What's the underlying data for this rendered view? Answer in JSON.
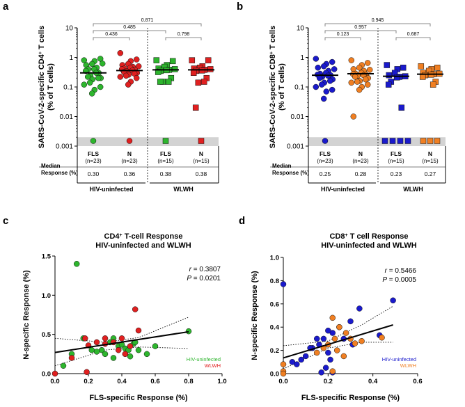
{
  "figure": {
    "panel_labels": [
      "a",
      "b",
      "c",
      "d"
    ]
  },
  "chart_data": [
    {
      "panel": "a",
      "type": "scatter",
      "title": "",
      "ylabel": "SARS-CoV-2-specific CD4+ T cells (% of T cells)",
      "ylabel_lines": [
        "SARS-CoV-2-specific CD4",
        "+",
        " T cells",
        "(% of T cells)"
      ],
      "yscale": "log",
      "ylim": [
        0.001,
        10
      ],
      "yticks": [
        0.001,
        0.01,
        0.1,
        1,
        10
      ],
      "ytick_labels": [
        "0.001",
        "0.01",
        "0.1",
        "1",
        "10"
      ],
      "floor_value": 0.0015,
      "row_labels": {
        "median": "Median",
        "response": "Response  (%)"
      },
      "groups": [
        {
          "name": "HIV-uninfected",
          "columns": [
            0,
            1
          ]
        },
        {
          "name": "WLWH",
          "columns": [
            2,
            3
          ]
        }
      ],
      "columns": [
        {
          "label": "FLS",
          "n": "(n=23)",
          "median": "0.30",
          "median_value": 0.3,
          "marker": "circle",
          "color": "#2db52d",
          "values": [
            0.8,
            0.9,
            0.75,
            0.6,
            0.55,
            0.62,
            0.45,
            0.4,
            0.4,
            0.35,
            0.3,
            0.3,
            0.25,
            0.22,
            0.2,
            0.2,
            0.18,
            0.14,
            0.12,
            0.1,
            0.08,
            0.06,
            0.0015
          ]
        },
        {
          "label": "N",
          "n": "(n=23)",
          "median": "0.36",
          "median_value": 0.36,
          "marker": "circle",
          "color": "#e02020",
          "values": [
            1.4,
            0.85,
            0.75,
            0.6,
            0.55,
            0.5,
            0.48,
            0.45,
            0.42,
            0.4,
            0.38,
            0.36,
            0.34,
            0.32,
            0.3,
            0.28,
            0.26,
            0.24,
            0.22,
            0.2,
            0.15,
            0.12,
            0.0015
          ]
        },
        {
          "label": "FLS",
          "n": "(n=15)",
          "median": "0.38",
          "median_value": 0.38,
          "marker": "square",
          "color": "#2db52d",
          "values": [
            0.8,
            0.75,
            0.55,
            0.48,
            0.42,
            0.4,
            0.38,
            0.37,
            0.35,
            0.32,
            0.2,
            0.15,
            0.15,
            0.15,
            0.0015
          ]
        },
        {
          "label": "N",
          "n": "(n=15)",
          "median": "0.38",
          "median_value": 0.38,
          "marker": "square",
          "color": "#e02020",
          "values": [
            0.8,
            0.8,
            0.5,
            0.45,
            0.42,
            0.4,
            0.38,
            0.36,
            0.35,
            0.3,
            0.2,
            0.15,
            0.14,
            0.02,
            0.0015
          ]
        }
      ],
      "comparisons": [
        {
          "from": 0,
          "to": 1,
          "p": "0.436"
        },
        {
          "from": 0,
          "to": 2,
          "p": "0.485"
        },
        {
          "from": 2,
          "to": 3,
          "p": "0.798"
        },
        {
          "from": 0,
          "to": 3,
          "p": "0.871"
        }
      ]
    },
    {
      "panel": "b",
      "type": "scatter",
      "title": "",
      "ylabel": "SARS-CoV-2-specific CD8+ T cells (% of T cells)",
      "ylabel_lines": [
        "SARS-CoV-2-specific CD8",
        "+",
        " T cells",
        "(% of T cells)"
      ],
      "yscale": "log",
      "ylim": [
        0.001,
        10
      ],
      "yticks": [
        0.001,
        0.01,
        0.1,
        1,
        10
      ],
      "ytick_labels": [
        "0.001",
        "0.01",
        "0.1",
        "1",
        "10"
      ],
      "floor_value": 0.0015,
      "row_labels": {
        "median": "Median",
        "response": "Response  (%)"
      },
      "groups": [
        {
          "name": "HIV-uninfected",
          "columns": [
            0,
            1
          ]
        },
        {
          "name": "WLWH",
          "columns": [
            2,
            3
          ]
        }
      ],
      "columns": [
        {
          "label": "FLS",
          "n": "(n=23)",
          "median": "0.25",
          "median_value": 0.25,
          "marker": "circle",
          "color": "#1a1acc",
          "values": [
            0.9,
            0.7,
            0.6,
            0.5,
            0.45,
            0.4,
            0.35,
            0.3,
            0.28,
            0.26,
            0.25,
            0.24,
            0.22,
            0.2,
            0.18,
            0.16,
            0.14,
            0.12,
            0.1,
            0.08,
            0.07,
            0.04,
            0.0015
          ]
        },
        {
          "label": "N",
          "n": "(n=23)",
          "median": "0.28",
          "median_value": 0.28,
          "marker": "circle",
          "color": "#f07f22",
          "values": [
            0.8,
            0.65,
            0.55,
            0.45,
            0.4,
            0.38,
            0.35,
            0.3,
            0.28,
            0.27,
            0.26,
            0.25,
            0.24,
            0.22,
            0.2,
            0.18,
            0.16,
            0.15,
            0.14,
            0.12,
            0.1,
            0.08,
            0.01
          ]
        },
        {
          "label": "FLS",
          "n": "(n=15)",
          "median": "0.23",
          "median_value": 0.23,
          "marker": "square",
          "color": "#1a1acc",
          "values": [
            0.55,
            0.45,
            0.4,
            0.3,
            0.25,
            0.23,
            0.22,
            0.21,
            0.15,
            0.12,
            0.02,
            0.0015,
            0.0015,
            0.0015,
            0.0015
          ]
        },
        {
          "label": "N",
          "n": "(n=15)",
          "median": "0.27",
          "median_value": 0.27,
          "marker": "square",
          "color": "#f07f22",
          "values": [
            0.5,
            0.45,
            0.4,
            0.35,
            0.3,
            0.28,
            0.27,
            0.26,
            0.25,
            0.22,
            0.15,
            0.12,
            0.0015,
            0.0015,
            0.0015
          ]
        }
      ],
      "comparisons": [
        {
          "from": 0,
          "to": 1,
          "p": "0.123"
        },
        {
          "from": 0,
          "to": 2,
          "p": "0.957"
        },
        {
          "from": 2,
          "to": 3,
          "p": "0.687"
        },
        {
          "from": 0,
          "to": 3,
          "p": "0.945"
        }
      ]
    },
    {
      "panel": "c",
      "type": "scatter",
      "title_line1": "CD4",
      "title_sup": "+",
      "title_line1_rest": " T-cell Response",
      "title_line2": "HIV-uninfected and WLWH",
      "xlabel": "FLS-specific Response (%)",
      "ylabel": "N-specific Response (%)",
      "xlim": [
        0,
        1.0
      ],
      "ylim": [
        0,
        1.5
      ],
      "xticks": [
        "0.0",
        "0.2",
        "0.4",
        "0.6",
        "0.8",
        "1.0"
      ],
      "yticks": [
        "0.0",
        "0.5",
        "1.0",
        "1.5"
      ],
      "stat_r_label": "r",
      "stat_r_value": " = 0.3807",
      "stat_p_label": "P",
      "stat_p_value": " = 0.0201",
      "legend": [
        {
          "name": "HIV-uninfected",
          "color": "#2db52d"
        },
        {
          "name": "WLWH",
          "color": "#e02020"
        }
      ],
      "regression": {
        "slope": 0.33,
        "intercept": 0.27,
        "x_range": [
          0,
          0.8
        ]
      },
      "ci_band": {
        "upper": [
          [
            0,
            0.45
          ],
          [
            0.3,
            0.4
          ],
          [
            0.5,
            0.46
          ],
          [
            0.8,
            0.72
          ]
        ],
        "lower": [
          [
            0,
            0.1
          ],
          [
            0.3,
            0.3
          ],
          [
            0.5,
            0.34
          ],
          [
            0.8,
            0.32
          ]
        ]
      },
      "series": [
        {
          "name": "HIV-uninfected",
          "color": "#2db52d",
          "x": [
            0.13,
            0.17,
            0.05,
            0.1,
            0.22,
            0.25,
            0.28,
            0.3,
            0.33,
            0.35,
            0.38,
            0.4,
            0.42,
            0.44,
            0.47,
            0.5,
            0.55,
            0.6,
            0.8,
            0.35,
            0.45,
            0.48
          ],
          "y": [
            1.4,
            0.45,
            0.1,
            0.25,
            0.3,
            0.28,
            0.3,
            0.25,
            0.4,
            0.45,
            0.35,
            0.37,
            0.32,
            0.3,
            0.38,
            0.3,
            0.25,
            0.35,
            0.54,
            0.2,
            0.22,
            0.4
          ]
        },
        {
          "name": "WLWH",
          "color": "#e02020",
          "x": [
            0.1,
            0.2,
            0.18,
            0.25,
            0.3,
            0.35,
            0.38,
            0.4,
            0.45,
            0.48,
            0.5,
            0.3,
            0.42,
            0.0,
            0.19
          ],
          "y": [
            0.2,
            0.36,
            0.45,
            0.4,
            0.45,
            0.4,
            0.3,
            0.45,
            0.35,
            0.82,
            0.55,
            0.38,
            0.25,
            0.0,
            0.02
          ]
        }
      ]
    },
    {
      "panel": "d",
      "type": "scatter",
      "title_line1": "CD8",
      "title_sup": "+",
      "title_line1_rest": " T cell Response",
      "title_line2": "HIV-uninfected and WLWH",
      "xlabel": "FLS-specific Response (%)",
      "ylabel": "N-specific Response (%)",
      "xlim": [
        0,
        0.6
      ],
      "ylim": [
        0,
        1.0
      ],
      "xticks": [
        "0.0",
        "0.2",
        "0.4",
        "0.6"
      ],
      "yticks": [
        "0.0",
        "0.2",
        "0.4",
        "0.6",
        "0.8",
        "1.0"
      ],
      "stat_r_label": "r",
      "stat_r_value": " = 0.5466",
      "stat_p_label": "P",
      "stat_p_value": " = 0.0005",
      "legend": [
        {
          "name": "HIV-uninfected",
          "color": "#1a1acc"
        },
        {
          "name": "WLWH",
          "color": "#f07f22"
        }
      ],
      "regression": {
        "slope": 0.58,
        "intercept": 0.135,
        "x_range": [
          0,
          0.49
        ]
      },
      "ci_band": {
        "upper": [
          [
            0,
            0.24
          ],
          [
            0.2,
            0.28
          ],
          [
            0.35,
            0.42
          ],
          [
            0.49,
            0.58
          ]
        ],
        "lower": [
          [
            0,
            0.04
          ],
          [
            0.2,
            0.22
          ],
          [
            0.35,
            0.27
          ],
          [
            0.49,
            0.27
          ]
        ]
      },
      "series": [
        {
          "name": "HIV-uninfected",
          "color": "#1a1acc",
          "x": [
            0.0,
            0.49,
            0.43,
            0.34,
            0.3,
            0.25,
            0.22,
            0.2,
            0.18,
            0.16,
            0.15,
            0.13,
            0.12,
            0.1,
            0.08,
            0.06,
            0.04,
            0.2,
            0.27,
            0.31,
            0.22,
            0.17,
            0.21,
            0.19
          ],
          "y": [
            0.77,
            0.63,
            0.33,
            0.56,
            0.45,
            0.4,
            0.35,
            0.37,
            0.3,
            0.25,
            0.3,
            0.22,
            0.22,
            0.15,
            0.12,
            0.08,
            0.1,
            0.18,
            0.3,
            0.25,
            0.01,
            0.01,
            0.12,
            0.05
          ]
        },
        {
          "name": "WLWH",
          "color": "#f07f22",
          "x": [
            0.0,
            0.0,
            0.22,
            0.25,
            0.28,
            0.3,
            0.35,
            0.2,
            0.18,
            0.15,
            0.23,
            0.27,
            0.32,
            0.44,
            0.22,
            0.24,
            0.0
          ],
          "y": [
            0.08,
            0.02,
            0.48,
            0.4,
            0.35,
            0.3,
            0.28,
            0.25,
            0.22,
            0.18,
            0.3,
            0.15,
            0.26,
            0.31,
            0.02,
            0.2,
            0.0
          ]
        }
      ]
    }
  ]
}
